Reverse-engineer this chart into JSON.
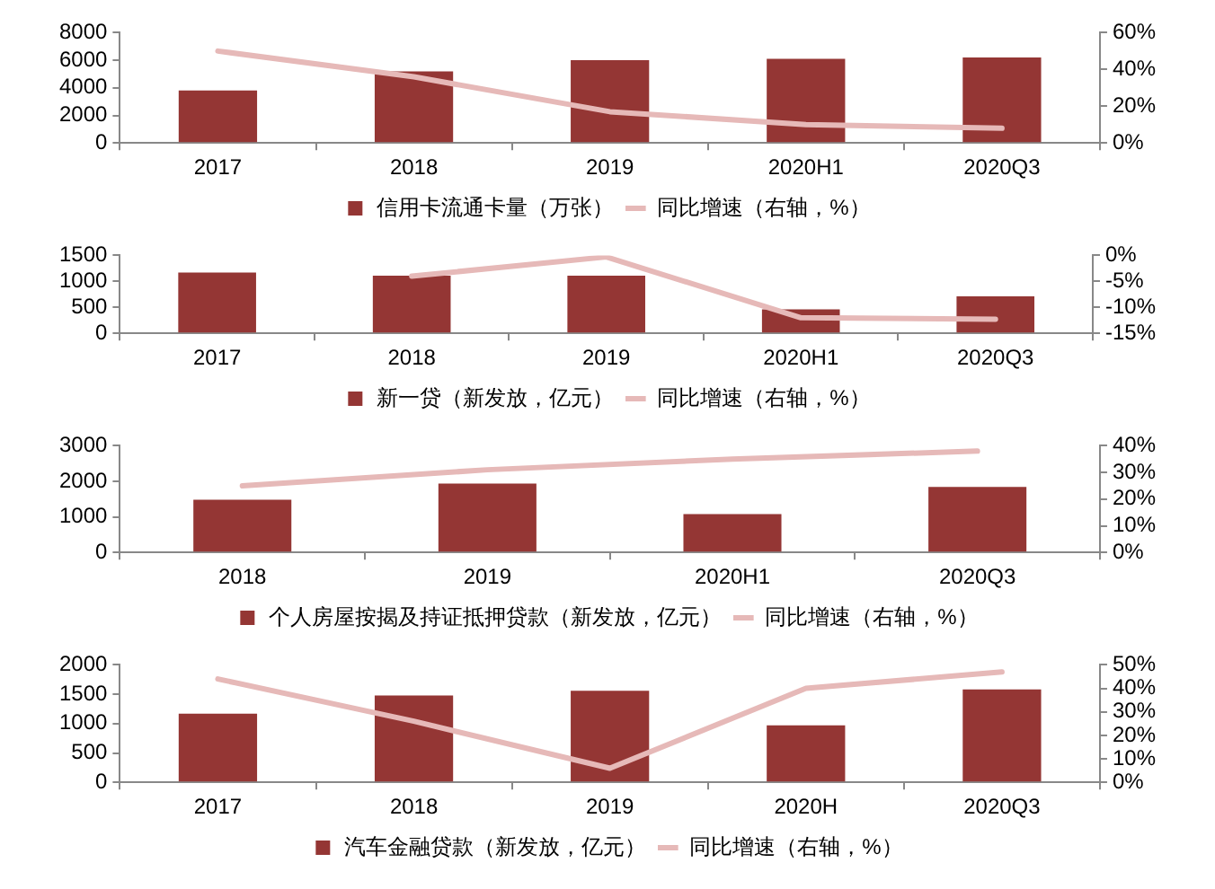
{
  "chart_data": [
    {
      "type": "bar",
      "categories": [
        "2017",
        "2018",
        "2019",
        "2020H1",
        "2020Q3"
      ],
      "legend": "bottom",
      "grid": false,
      "series": [
        {
          "name": "信用卡流通卡量（万张）",
          "color": "#943634",
          "values": [
            3800,
            5200,
            6000,
            6100,
            6200
          ]
        },
        {
          "name": "同比增速（右轴，%）",
          "type": "line",
          "axis": "y2",
          "color": "#e6b9b8",
          "values": [
            50,
            36,
            17,
            10,
            8
          ]
        }
      ],
      "ylim": [
        0,
        8000
      ],
      "yticks": [
        0,
        2000,
        4000,
        6000,
        8000
      ],
      "y2lim": [
        0,
        60
      ],
      "y2ticks": [
        {
          "value": 0,
          "label": "0%"
        },
        {
          "value": 20,
          "label": "20%"
        },
        {
          "value": 40,
          "label": "40%"
        },
        {
          "value": 60,
          "label": "60%"
        }
      ]
    },
    {
      "type": "bar",
      "categories": [
        "2017",
        "2018",
        "2019",
        "2020H1",
        "2020Q3"
      ],
      "legend": "bottom",
      "grid": false,
      "series": [
        {
          "name": "新一贷（新发放，亿元）",
          "color": "#943634",
          "values": [
            1170,
            1110,
            1110,
            460,
            710
          ]
        },
        {
          "name": "同比增速（右轴，%）",
          "type": "line",
          "axis": "y2",
          "color": "#e6b9b8",
          "values": [
            null,
            -4,
            -0.3,
            -12,
            -12.3
          ]
        }
      ],
      "ylim": [
        0,
        1500
      ],
      "yticks": [
        0,
        500,
        1000,
        1500
      ],
      "y2lim": [
        -15,
        0
      ],
      "y2ticks": [
        {
          "value": -15,
          "label": "-15%"
        },
        {
          "value": -10,
          "label": "-10%"
        },
        {
          "value": -5,
          "label": "-5%"
        },
        {
          "value": 0,
          "label": "0%"
        }
      ]
    },
    {
      "type": "bar",
      "categories": [
        "2018",
        "2019",
        "2020H1",
        "2020Q3"
      ],
      "legend": "bottom",
      "grid": false,
      "series": [
        {
          "name": "个人房屋按揭及持证抵押贷款（新发放，亿元）",
          "color": "#943634",
          "values": [
            1480,
            1940,
            1080,
            1840
          ]
        },
        {
          "name": "同比增速（右轴，%）",
          "type": "line",
          "axis": "y2",
          "color": "#e6b9b8",
          "values": [
            25,
            31,
            35,
            38
          ]
        }
      ],
      "ylim": [
        0,
        3000
      ],
      "yticks": [
        0,
        1000,
        2000,
        3000
      ],
      "y2lim": [
        0,
        40
      ],
      "y2ticks": [
        {
          "value": 0,
          "label": "0%"
        },
        {
          "value": 10,
          "label": "10%"
        },
        {
          "value": 20,
          "label": "20%"
        },
        {
          "value": 30,
          "label": "30%"
        },
        {
          "value": 40,
          "label": "40%"
        }
      ]
    },
    {
      "type": "bar",
      "categories": [
        "2017",
        "2018",
        "2019",
        "2020H",
        "2020Q3"
      ],
      "legend": "bottom",
      "grid": false,
      "series": [
        {
          "name": "汽车金融贷款（新发放，亿元）",
          "color": "#943634",
          "values": [
            1170,
            1480,
            1560,
            970,
            1580
          ]
        },
        {
          "name": "同比增速（右轴，%）",
          "type": "line",
          "axis": "y2",
          "color": "#e6b9b8",
          "values": [
            44,
            26,
            6,
            40,
            47
          ]
        }
      ],
      "ylim": [
        0,
        2000
      ],
      "yticks": [
        0,
        500,
        1000,
        1500,
        2000
      ],
      "y2lim": [
        0,
        50
      ],
      "y2ticks": [
        {
          "value": 0,
          "label": "0%"
        },
        {
          "value": 10,
          "label": "10%"
        },
        {
          "value": 20,
          "label": "20%"
        },
        {
          "value": 30,
          "label": "30%"
        },
        {
          "value": 40,
          "label": "40%"
        },
        {
          "value": 50,
          "label": "50%"
        }
      ]
    }
  ]
}
